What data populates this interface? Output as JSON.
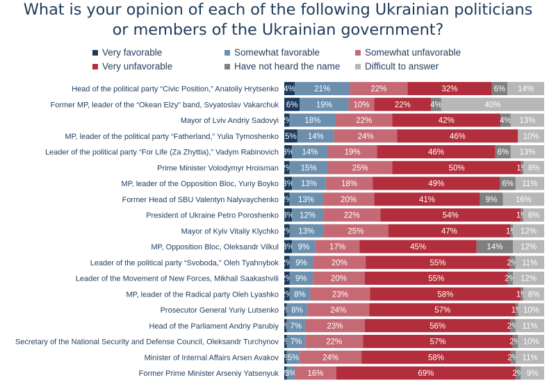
{
  "title_line1": "What is your opinion of each of the following Ukrainian politicians",
  "title_line2": "or members of the Ukrainian government?",
  "colors": {
    "very_favorable": "#1b3a5c",
    "somewhat_favorable": "#6b8fad",
    "somewhat_unfavorable": "#c56a74",
    "very_unfavorable": "#b22e3c",
    "not_heard": "#7f7f7f",
    "difficult": "#b7b7b7",
    "title_text": "#1f3b5a"
  },
  "chart_data": {
    "type": "bar",
    "orientation": "horizontal",
    "stacked": true,
    "xlim": [
      0,
      100
    ],
    "legend_position": "top",
    "categories": [
      "Head of the political party “Civic Position,” Anatoliy Hrytsenko",
      "Former MP, leader of the “Okean Elzy” band, Svyatoslav Vakarchuk",
      "Mayor of Lviv Andriy Sadovyi",
      "MP, leader of the political party “Fatherland,” Yulia Tymoshenko",
      "Leader of the political party “For Life (Za Zhyttia),” Vadym Rabinovich",
      "Prime Minister Volodymyr Hroisman",
      "MP, leader of the Opposition Bloc, Yuriy Boyko",
      "Former Head of SBU Valentyn Nalyvaychenko",
      "President of Ukraine Petro Poroshenko",
      "Mayor of Kyiv Vitaliy Klychko",
      "MP, Opposition Bloc, Oleksandr Vilkul",
      "Leader of the political party “Svoboda,” Oleh Tyahnybok",
      "Leader of the Movement of New Forces, Mikhail Saakashvili",
      "MP, leader of the Radical party Oleh Lyashko",
      "Prosecutor General Yuriy Lutsenko",
      "Head of the Parliament Andriy Parubiy",
      "Secretary of the National Security and Defense Council, Oleksandr Turchynov",
      "Minister of Internal Affairs Arsen Avakov",
      "Former Prime Minister Arseniy Yatsenyuk"
    ],
    "series": [
      {
        "name": "Very favorable",
        "color_key": "very_favorable",
        "values": [
          4,
          6,
          2,
          5,
          3,
          2,
          3,
          2,
          3,
          2,
          3,
          2,
          2,
          2,
          1,
          1,
          1,
          1,
          1
        ]
      },
      {
        "name": "Somewhat favorable",
        "color_key": "somewhat_favorable",
        "values": [
          21,
          19,
          18,
          14,
          14,
          15,
          13,
          13,
          12,
          13,
          9,
          9,
          9,
          8,
          8,
          7,
          7,
          5,
          3
        ]
      },
      {
        "name": "Somewhat unfavorable",
        "color_key": "somewhat_unfavorable",
        "values": [
          22,
          10,
          22,
          24,
          19,
          25,
          18,
          20,
          22,
          25,
          17,
          20,
          20,
          23,
          24,
          23,
          22,
          24,
          16
        ]
      },
      {
        "name": "Very unfavorable",
        "color_key": "very_unfavorable",
        "values": [
          32,
          22,
          42,
          46,
          46,
          50,
          49,
          41,
          54,
          47,
          45,
          55,
          55,
          58,
          57,
          56,
          57,
          58,
          69
        ]
      },
      {
        "name": "Have not heard the name",
        "color_key": "not_heard",
        "values": [
          6,
          4,
          4,
          0,
          6,
          1,
          6,
          9,
          1,
          1,
          14,
          2,
          2,
          1,
          1,
          2,
          2,
          2,
          2
        ]
      },
      {
        "name": "Difficult to answer",
        "color_key": "difficult",
        "values": [
          14,
          40,
          13,
          10,
          13,
          8,
          11,
          16,
          8,
          12,
          12,
          11,
          12,
          8,
          10,
          11,
          10,
          11,
          9
        ]
      }
    ]
  }
}
